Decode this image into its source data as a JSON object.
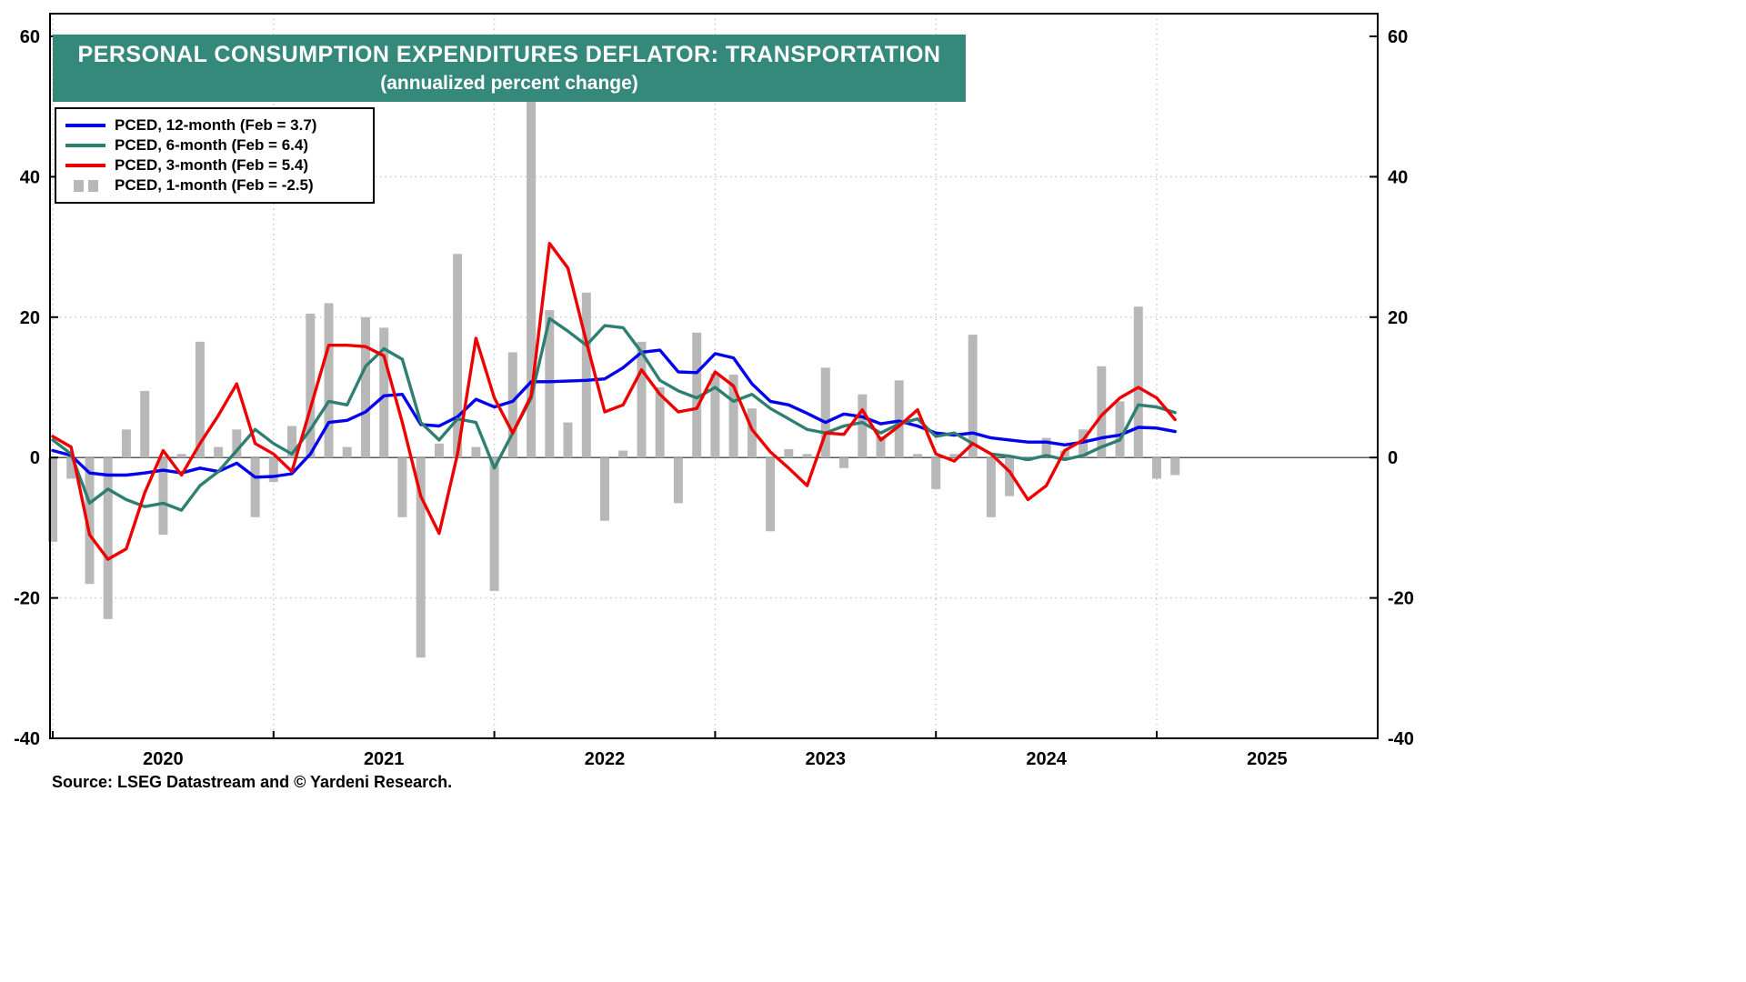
{
  "chart_data": {
    "type": "bar+line",
    "title": "PERSONAL CONSUMPTION EXPENDITURES DEFLATOR: TRANSPORTATION",
    "subtitle": "(annualized percent change)",
    "source": "Source: LSEG Datastream and © Yardeni Research.",
    "ylim": [
      -40,
      60
    ],
    "y_ticks": [
      60,
      40,
      20,
      0,
      -20,
      -40
    ],
    "x_year_labels": [
      "2020",
      "2021",
      "2022",
      "2023",
      "2024",
      "2025"
    ],
    "grid": "dotted",
    "legend_position": "top-left",
    "colors": {
      "banner": "#35897B",
      "grid": "#c6c6c6",
      "axis": "#000000",
      "zero_line": "#222222"
    },
    "months": [
      "2020-01",
      "2020-02",
      "2020-03",
      "2020-04",
      "2020-05",
      "2020-06",
      "2020-07",
      "2020-08",
      "2020-09",
      "2020-10",
      "2020-11",
      "2020-12",
      "2021-01",
      "2021-02",
      "2021-03",
      "2021-04",
      "2021-05",
      "2021-06",
      "2021-07",
      "2021-08",
      "2021-09",
      "2021-10",
      "2021-11",
      "2021-12",
      "2022-01",
      "2022-02",
      "2022-03",
      "2022-04",
      "2022-05",
      "2022-06",
      "2022-07",
      "2022-08",
      "2022-09",
      "2022-10",
      "2022-11",
      "2022-12",
      "2023-01",
      "2023-02",
      "2023-03",
      "2023-04",
      "2023-05",
      "2023-06",
      "2023-07",
      "2023-08",
      "2023-09",
      "2023-10",
      "2023-11",
      "2023-12",
      "2024-01",
      "2024-02",
      "2024-03",
      "2024-04",
      "2024-05",
      "2024-06",
      "2024-07",
      "2024-08",
      "2024-09",
      "2024-10",
      "2024-11",
      "2024-12",
      "2025-01",
      "2025-02"
    ],
    "series": [
      {
        "name": "PCED, 12-month",
        "legend_label": "PCED, 12-month (Feb = 3.7)",
        "type": "line",
        "color": "#0000EE",
        "latest": 3.7,
        "values": [
          1.0,
          0.3,
          -2.2,
          -2.5,
          -2.5,
          -2.2,
          -1.8,
          -2.2,
          -1.5,
          -2.0,
          -0.8,
          -2.8,
          -2.7,
          -2.3,
          0.5,
          5.0,
          5.3,
          6.5,
          8.8,
          9.0,
          4.7,
          4.5,
          5.8,
          8.3,
          7.2,
          8.0,
          10.8,
          10.8,
          10.9,
          11.0,
          11.2,
          12.8,
          15.0,
          15.3,
          12.2,
          12.1,
          14.8,
          14.2,
          10.5,
          8.0,
          7.5,
          6.3,
          5.0,
          6.2,
          5.8,
          4.8,
          5.2,
          4.5,
          3.5,
          3.2,
          3.5,
          2.8,
          2.5,
          2.2,
          2.2,
          1.8,
          2.2,
          2.8,
          3.2,
          4.3,
          4.2,
          3.7
        ]
      },
      {
        "name": "PCED, 6-month",
        "legend_label": "PCED, 6-month (Feb = 6.4)",
        "type": "line",
        "color": "#2E7F72",
        "latest": 6.4,
        "values": [
          2.5,
          0.5,
          -6.5,
          -4.5,
          -6.0,
          -7.0,
          -6.5,
          -7.5,
          -4.0,
          -2.0,
          1.0,
          4.0,
          2.0,
          0.5,
          4.0,
          8.0,
          7.5,
          13.0,
          15.5,
          14.0,
          5.0,
          2.5,
          5.5,
          5.0,
          -1.5,
          3.5,
          8.5,
          19.8,
          18.0,
          16.0,
          18.8,
          18.5,
          15.0,
          11.0,
          9.5,
          8.5,
          10.0,
          8.0,
          9.0,
          7.0,
          5.5,
          4.0,
          3.5,
          4.5,
          5.0,
          3.5,
          4.8,
          5.5,
          3.0,
          3.5,
          2.0,
          0.5,
          0.2,
          -0.3,
          0.3,
          -0.3,
          0.3,
          1.5,
          2.5,
          7.5,
          7.2,
          6.4
        ]
      },
      {
        "name": "PCED, 3-month",
        "legend_label": "PCED, 3-month (Feb = 5.4)",
        "type": "line",
        "color": "#EE0000",
        "latest": 5.4,
        "values": [
          3.0,
          1.5,
          -11.0,
          -14.5,
          -13.0,
          -5.0,
          1.0,
          -2.5,
          2.0,
          6.0,
          10.5,
          2.0,
          0.5,
          -2.0,
          7.0,
          16.0,
          16.0,
          15.8,
          14.5,
          5.0,
          -5.5,
          -10.8,
          0.5,
          17.0,
          8.5,
          3.5,
          8.8,
          30.5,
          27.0,
          16.5,
          6.5,
          7.5,
          12.5,
          9.0,
          6.5,
          7.0,
          12.2,
          10.2,
          4.0,
          0.8,
          -1.5,
          -4.0,
          3.5,
          3.3,
          6.8,
          2.5,
          4.5,
          6.8,
          0.5,
          -0.5,
          2.0,
          0.5,
          -2.0,
          -6.0,
          -4.0,
          1.0,
          2.5,
          6.0,
          8.5,
          10.0,
          8.5,
          5.4
        ]
      },
      {
        "name": "PCED, 1-month",
        "legend_label": "PCED, 1-month (Feb = -2.5)",
        "type": "bar",
        "color": "#B8B8B8",
        "latest": -2.5,
        "values": [
          -12,
          -3,
          -18,
          -23,
          4,
          9.5,
          -11,
          0.5,
          16.5,
          1.5,
          4,
          -8.5,
          -3.5,
          4.5,
          20.5,
          22,
          1.5,
          20,
          18.5,
          -8.5,
          -28.5,
          2,
          29,
          1.5,
          -19,
          15,
          51,
          21,
          5,
          23.5,
          -9,
          1,
          16.5,
          10,
          -6.5,
          17.8,
          12,
          11.8,
          7,
          -10.5,
          1.2,
          0.5,
          12.8,
          -1.5,
          9,
          3,
          11,
          0.5,
          -4.5,
          0.5,
          17.5,
          -8.5,
          -5.5,
          -0.5,
          2.8,
          1,
          4,
          13,
          8,
          21.5,
          -3,
          -2.5
        ]
      }
    ]
  }
}
